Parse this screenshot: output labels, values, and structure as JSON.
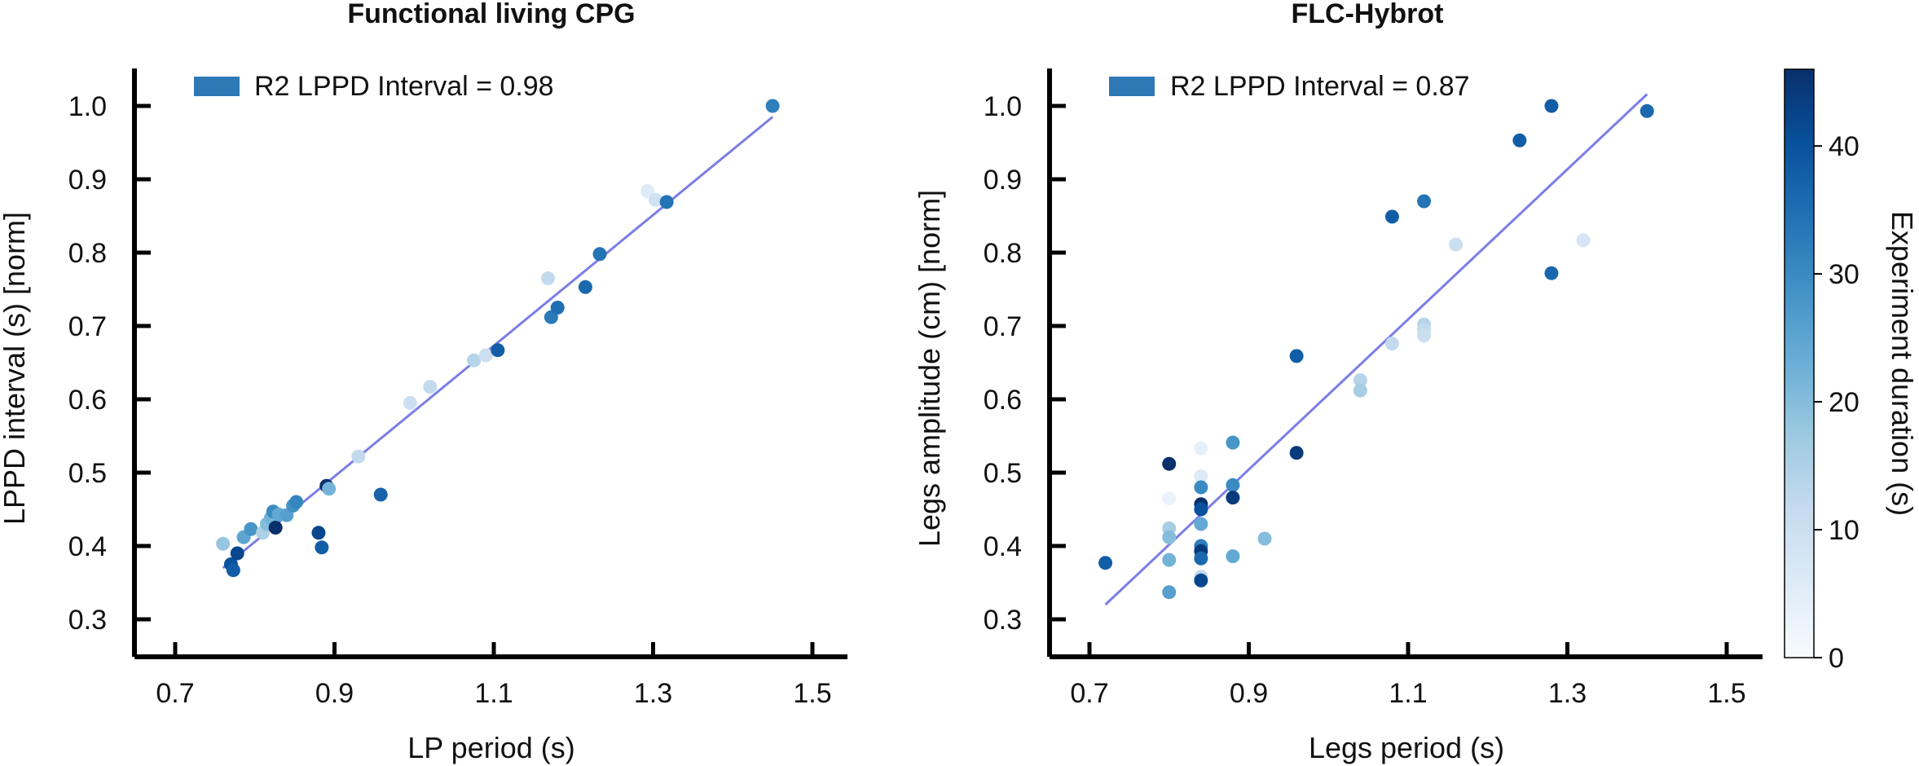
{
  "colors": {
    "legend_patch": "#2f78b6",
    "fit_line": "#7b7ee6",
    "colormap": [
      "#f7fbff",
      "#deebf7",
      "#c6dbef",
      "#9ecae1",
      "#6baed6",
      "#4292c6",
      "#2171b5",
      "#08519c",
      "#08306b"
    ]
  },
  "colorbar": {
    "label": "Experiment duration (s)",
    "min": 0,
    "max": 46,
    "ticks": [
      0,
      10,
      20,
      30,
      40
    ]
  },
  "chart_data": [
    {
      "type": "scatter",
      "title": "Functional living CPG",
      "xlabel": "LP period (s)",
      "ylabel": "LPPD interval (s) [norm]",
      "xlim": [
        0.65,
        1.54
      ],
      "ylim": [
        0.25,
        1.04
      ],
      "xticks": [
        0.7,
        0.9,
        1.1,
        1.3,
        1.5
      ],
      "yticks": [
        0.3,
        0.4,
        0.5,
        0.6,
        0.7,
        0.8,
        0.9,
        1.0
      ],
      "legend": "R2 LPPD Interval = 0.98",
      "legend_position": "top-left",
      "fit": {
        "x": [
          0.76,
          1.45
        ],
        "y": [
          0.37,
          0.985
        ]
      },
      "points": [
        {
          "x": 0.76,
          "y": 0.403,
          "c": 18
        },
        {
          "x": 0.77,
          "y": 0.375,
          "c": 40
        },
        {
          "x": 0.773,
          "y": 0.367,
          "c": 38
        },
        {
          "x": 0.778,
          "y": 0.39,
          "c": 42
        },
        {
          "x": 0.786,
          "y": 0.412,
          "c": 25
        },
        {
          "x": 0.795,
          "y": 0.423,
          "c": 28
        },
        {
          "x": 0.81,
          "y": 0.418,
          "c": 15
        },
        {
          "x": 0.815,
          "y": 0.43,
          "c": 20
        },
        {
          "x": 0.82,
          "y": 0.438,
          "c": 22
        },
        {
          "x": 0.823,
          "y": 0.447,
          "c": 30
        },
        {
          "x": 0.826,
          "y": 0.425,
          "c": 46
        },
        {
          "x": 0.83,
          "y": 0.443,
          "c": 24
        },
        {
          "x": 0.84,
          "y": 0.442,
          "c": 26
        },
        {
          "x": 0.848,
          "y": 0.455,
          "c": 29
        },
        {
          "x": 0.852,
          "y": 0.46,
          "c": 31
        },
        {
          "x": 0.88,
          "y": 0.418,
          "c": 42
        },
        {
          "x": 0.884,
          "y": 0.398,
          "c": 38
        },
        {
          "x": 0.89,
          "y": 0.482,
          "c": 46
        },
        {
          "x": 0.893,
          "y": 0.478,
          "c": 22
        },
        {
          "x": 0.93,
          "y": 0.522,
          "c": 12
        },
        {
          "x": 0.958,
          "y": 0.47,
          "c": 37
        },
        {
          "x": 0.995,
          "y": 0.595,
          "c": 10
        },
        {
          "x": 1.02,
          "y": 0.617,
          "c": 12
        },
        {
          "x": 1.075,
          "y": 0.653,
          "c": 14
        },
        {
          "x": 1.09,
          "y": 0.66,
          "c": 10
        },
        {
          "x": 1.105,
          "y": 0.667,
          "c": 38
        },
        {
          "x": 1.168,
          "y": 0.765,
          "c": 12
        },
        {
          "x": 1.172,
          "y": 0.712,
          "c": 33
        },
        {
          "x": 1.18,
          "y": 0.725,
          "c": 35
        },
        {
          "x": 1.215,
          "y": 0.753,
          "c": 36
        },
        {
          "x": 1.233,
          "y": 0.798,
          "c": 34
        },
        {
          "x": 1.293,
          "y": 0.884,
          "c": 6
        },
        {
          "x": 1.303,
          "y": 0.872,
          "c": 9
        },
        {
          "x": 1.317,
          "y": 0.869,
          "c": 34
        },
        {
          "x": 1.45,
          "y": 1.0,
          "c": 32
        }
      ]
    },
    {
      "type": "scatter",
      "title": "FLC-Hybrot",
      "xlabel": "Legs period (s)",
      "ylabel": "Legs amplitude (cm) [norm]",
      "xlim": [
        0.65,
        1.54
      ],
      "ylim": [
        0.25,
        1.04
      ],
      "xticks": [
        0.7,
        0.9,
        1.1,
        1.3,
        1.5
      ],
      "yticks": [
        0.3,
        0.4,
        0.5,
        0.6,
        0.7,
        0.8,
        0.9,
        1.0
      ],
      "legend": "R2 LPPD Interval = 0.87",
      "legend_position": "top-left",
      "fit": {
        "x": [
          0.72,
          1.4
        ],
        "y": [
          0.32,
          1.016
        ]
      },
      "points": [
        {
          "x": 0.72,
          "y": 0.377,
          "c": 38
        },
        {
          "x": 0.8,
          "y": 0.512,
          "c": 46
        },
        {
          "x": 0.8,
          "y": 0.465,
          "c": 3
        },
        {
          "x": 0.8,
          "y": 0.424,
          "c": 16
        },
        {
          "x": 0.8,
          "y": 0.412,
          "c": 20
        },
        {
          "x": 0.8,
          "y": 0.381,
          "c": 22
        },
        {
          "x": 0.8,
          "y": 0.337,
          "c": 26
        },
        {
          "x": 0.84,
          "y": 0.533,
          "c": 4
        },
        {
          "x": 0.84,
          "y": 0.495,
          "c": 6
        },
        {
          "x": 0.84,
          "y": 0.48,
          "c": 30
        },
        {
          "x": 0.84,
          "y": 0.457,
          "c": 46
        },
        {
          "x": 0.84,
          "y": 0.45,
          "c": 40
        },
        {
          "x": 0.84,
          "y": 0.43,
          "c": 24
        },
        {
          "x": 0.84,
          "y": 0.4,
          "c": 32
        },
        {
          "x": 0.84,
          "y": 0.393,
          "c": 44
        },
        {
          "x": 0.84,
          "y": 0.383,
          "c": 36
        },
        {
          "x": 0.84,
          "y": 0.358,
          "c": 12
        },
        {
          "x": 0.84,
          "y": 0.353,
          "c": 42
        },
        {
          "x": 0.88,
          "y": 0.541,
          "c": 28
        },
        {
          "x": 0.88,
          "y": 0.483,
          "c": 30
        },
        {
          "x": 0.88,
          "y": 0.466,
          "c": 44
        },
        {
          "x": 0.88,
          "y": 0.386,
          "c": 24
        },
        {
          "x": 0.92,
          "y": 0.41,
          "c": 20
        },
        {
          "x": 0.96,
          "y": 0.659,
          "c": 38
        },
        {
          "x": 0.96,
          "y": 0.527,
          "c": 44
        },
        {
          "x": 1.04,
          "y": 0.626,
          "c": 14
        },
        {
          "x": 1.04,
          "y": 0.612,
          "c": 16
        },
        {
          "x": 1.08,
          "y": 0.849,
          "c": 38
        },
        {
          "x": 1.08,
          "y": 0.676,
          "c": 12
        },
        {
          "x": 1.12,
          "y": 0.87,
          "c": 34
        },
        {
          "x": 1.12,
          "y": 0.702,
          "c": 14
        },
        {
          "x": 1.12,
          "y": 0.695,
          "c": 12
        },
        {
          "x": 1.12,
          "y": 0.687,
          "c": 10
        },
        {
          "x": 1.16,
          "y": 0.811,
          "c": 10
        },
        {
          "x": 1.24,
          "y": 0.953,
          "c": 38
        },
        {
          "x": 1.28,
          "y": 1.0,
          "c": 38
        },
        {
          "x": 1.28,
          "y": 0.772,
          "c": 36
        },
        {
          "x": 1.32,
          "y": 0.817,
          "c": 8
        },
        {
          "x": 1.4,
          "y": 0.993,
          "c": 36
        }
      ]
    }
  ]
}
